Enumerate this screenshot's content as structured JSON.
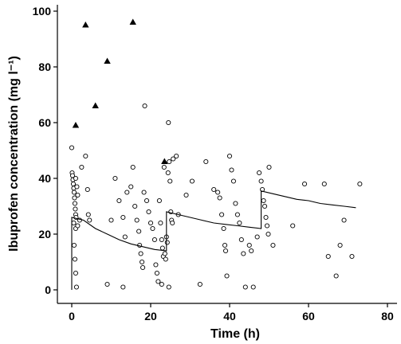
{
  "chart_data": {
    "type": "scatter",
    "xlabel": "Time (h)",
    "ylabel": "Ibuprofen concentration (mg l⁻¹)",
    "xlim": [
      0,
      80
    ],
    "ylim": [
      0,
      100
    ],
    "xticks": [
      0,
      20,
      40,
      60,
      80
    ],
    "yticks": [
      0,
      20,
      40,
      60,
      80,
      100
    ],
    "grid": false,
    "legend": "none",
    "series": [
      {
        "marker": "open-circle",
        "points": [
          [
            0.0,
            51
          ],
          [
            0.1,
            42
          ],
          [
            0.2,
            41
          ],
          [
            0.3,
            39.5
          ],
          [
            0.4,
            38
          ],
          [
            0.5,
            36.5
          ],
          [
            0.6,
            35
          ],
          [
            0.7,
            33
          ],
          [
            0.8,
            31
          ],
          [
            0.9,
            29
          ],
          [
            1.0,
            27
          ],
          [
            1.1,
            26
          ],
          [
            0.5,
            24
          ],
          [
            1.0,
            22
          ],
          [
            1.5,
            23
          ],
          [
            0.6,
            16
          ],
          [
            0.8,
            11
          ],
          [
            1.0,
            6
          ],
          [
            1.2,
            1
          ],
          [
            1.0,
            40
          ],
          [
            1.3,
            37
          ],
          [
            1.5,
            34
          ],
          [
            2.0,
            25
          ],
          [
            2.5,
            44
          ],
          [
            3.5,
            48
          ],
          [
            4.0,
            36
          ],
          [
            4.2,
            27
          ],
          [
            4.5,
            25
          ],
          [
            9.0,
            2
          ],
          [
            10,
            25
          ],
          [
            11,
            40
          ],
          [
            12,
            32
          ],
          [
            13,
            26
          ],
          [
            13.5,
            19
          ],
          [
            13,
            1
          ],
          [
            14,
            35
          ],
          [
            15,
            37
          ],
          [
            15.5,
            44
          ],
          [
            16,
            30
          ],
          [
            16.5,
            25
          ],
          [
            17,
            21
          ],
          [
            17.2,
            16
          ],
          [
            17.5,
            13
          ],
          [
            17.8,
            10
          ],
          [
            18,
            8
          ],
          [
            18.3,
            35
          ],
          [
            18.5,
            66
          ],
          [
            19,
            32
          ],
          [
            19.5,
            28
          ],
          [
            20,
            24
          ],
          [
            20.5,
            22
          ],
          [
            21,
            18
          ],
          [
            21.3,
            9
          ],
          [
            21.6,
            6
          ],
          [
            21.9,
            3
          ],
          [
            22.2,
            32
          ],
          [
            22.5,
            24
          ],
          [
            22.8,
            18
          ],
          [
            23,
            15
          ],
          [
            23.2,
            12
          ],
          [
            23.4,
            44
          ],
          [
            23.6,
            13
          ],
          [
            23.8,
            11
          ],
          [
            24.0,
            19
          ],
          [
            24.2,
            17
          ],
          [
            24.4,
            42
          ],
          [
            24.5,
            60
          ],
          [
            24.7,
            46
          ],
          [
            24.9,
            39
          ],
          [
            25.1,
            28
          ],
          [
            25.3,
            25
          ],
          [
            25.5,
            24
          ],
          [
            25.7,
            47
          ],
          [
            24.6,
            1
          ],
          [
            22.8,
            2
          ],
          [
            26.5,
            48
          ],
          [
            27,
            27
          ],
          [
            29,
            34
          ],
          [
            30.5,
            39
          ],
          [
            32.5,
            2
          ],
          [
            34,
            46
          ],
          [
            36,
            36
          ],
          [
            37,
            35
          ],
          [
            37.5,
            33
          ],
          [
            38,
            27
          ],
          [
            38.5,
            22
          ],
          [
            38.8,
            16
          ],
          [
            39,
            14
          ],
          [
            39.3,
            5
          ],
          [
            40,
            48
          ],
          [
            40.5,
            43
          ],
          [
            41,
            39
          ],
          [
            41.5,
            31
          ],
          [
            42,
            27
          ],
          [
            42.5,
            24
          ],
          [
            43,
            18
          ],
          [
            43.5,
            13
          ],
          [
            44,
            1
          ],
          [
            45,
            16
          ],
          [
            45.5,
            14
          ],
          [
            46,
            1
          ],
          [
            47,
            19
          ],
          [
            47.5,
            42
          ],
          [
            48,
            39
          ],
          [
            48.3,
            36
          ],
          [
            48.6,
            32
          ],
          [
            48.9,
            30
          ],
          [
            49.2,
            26
          ],
          [
            49.5,
            23
          ],
          [
            49.8,
            20
          ],
          [
            50,
            44
          ],
          [
            51,
            16
          ],
          [
            56,
            23
          ],
          [
            59,
            38
          ],
          [
            64,
            38
          ],
          [
            65,
            12
          ],
          [
            67,
            5
          ],
          [
            68,
            16
          ],
          [
            69,
            25
          ],
          [
            71,
            12
          ],
          [
            73,
            38
          ]
        ]
      },
      {
        "marker": "filled-triangle",
        "points": [
          [
            1.0,
            59
          ],
          [
            3.5,
            95
          ],
          [
            6.0,
            66
          ],
          [
            9.0,
            82
          ],
          [
            15.5,
            96
          ],
          [
            23.5,
            46
          ]
        ]
      },
      {
        "marker": "line",
        "points": [
          [
            0,
            0
          ],
          [
            0,
            26
          ],
          [
            3,
            25
          ],
          [
            6,
            22
          ],
          [
            9,
            20
          ],
          [
            12,
            18
          ],
          [
            15,
            16.5
          ],
          [
            18,
            15.5
          ],
          [
            21,
            14.5
          ],
          [
            24,
            14
          ],
          [
            24,
            28
          ],
          [
            27,
            27
          ],
          [
            30,
            26
          ],
          [
            33,
            25
          ],
          [
            36,
            24
          ],
          [
            39,
            23.5
          ],
          [
            42,
            23
          ],
          [
            45,
            22.5
          ],
          [
            48,
            22
          ],
          [
            48,
            35.5
          ],
          [
            51,
            34.5
          ],
          [
            54,
            33.5
          ],
          [
            57,
            32.5
          ],
          [
            60,
            32
          ],
          [
            63,
            31
          ],
          [
            66,
            30.5
          ],
          [
            69,
            30
          ],
          [
            72,
            29.5
          ]
        ]
      }
    ]
  }
}
